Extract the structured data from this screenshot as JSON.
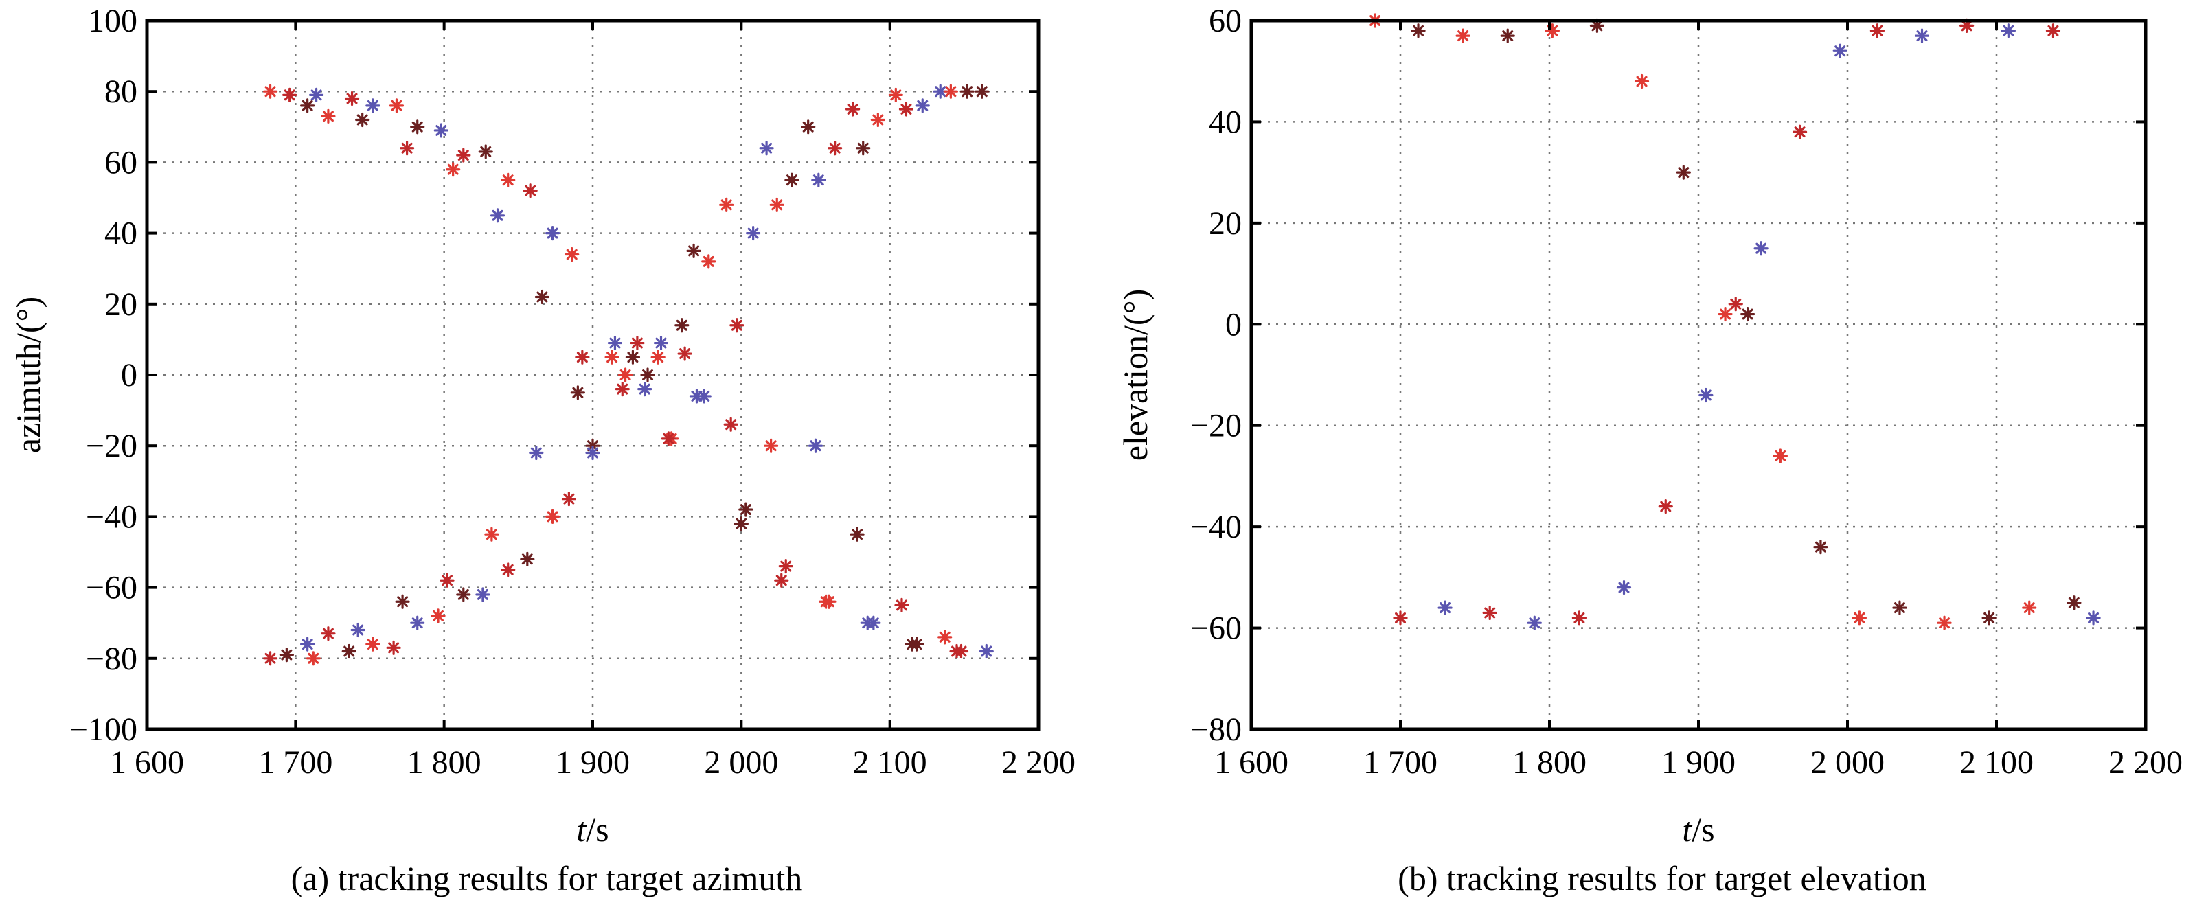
{
  "chart_data": [
    {
      "id": "azimuth",
      "type": "scatter",
      "caption": "(a) tracking results for target azimuth",
      "xlabel_italic": "t",
      "xlabel_rest": "/s",
      "ylabel": "azimuth/(°)",
      "xlim": [
        1600,
        2200
      ],
      "ylim": [
        -100,
        100
      ],
      "x_ticks": [
        1600,
        1700,
        1800,
        1900,
        2000,
        2100,
        2200
      ],
      "x_tick_labels": [
        "1 600",
        "1 700",
        "1 800",
        "1 900",
        "2 000",
        "2 100",
        "2 200"
      ],
      "y_ticks": [
        -100,
        -80,
        -60,
        -40,
        -20,
        0,
        20,
        40,
        60,
        80,
        100
      ],
      "y_tick_labels": [
        "−100",
        "−80",
        "−60",
        "−40",
        "−20",
        "0",
        "20",
        "40",
        "60",
        "80",
        "100"
      ],
      "grid": true,
      "marker": "asterisk",
      "colors": [
        "#e03a33",
        "#c0282a",
        "#6a2020",
        "#5a55b0"
      ],
      "series": [
        {
          "x": [
            1683,
            1696,
            1708,
            1714,
            1722,
            1738,
            1745,
            1752,
            1768,
            1775,
            1782,
            1798,
            1806,
            1813,
            1828,
            1836,
            1843,
            1858,
            1866,
            1873,
            1886,
            1893,
            1900,
            1915,
            1922,
            1930,
            1937,
            1946,
            1953,
            1962,
            1968,
            1975,
            1990,
            1997,
            2003,
            2017,
            2024,
            2030,
            2045,
            2052,
            2059,
            2075,
            2082,
            2089,
            2104,
            2111,
            2118,
            2134,
            2141,
            2148,
            2162
          ],
          "y": [
            80,
            79,
            76,
            79,
            73,
            78,
            72,
            76,
            76,
            64,
            70,
            69,
            58,
            62,
            63,
            45,
            55,
            52,
            22,
            40,
            34,
            5,
            -20,
            9,
            0,
            9,
            0,
            9,
            -18,
            6,
            35,
            -6,
            48,
            14,
            -38,
            64,
            48,
            -54,
            70,
            55,
            -64,
            75,
            64,
            -70,
            79,
            75,
            -76,
            80,
            80,
            -78,
            80
          ]
        },
        {
          "x": [
            1683,
            1694,
            1708,
            1712,
            1722,
            1736,
            1742,
            1752,
            1766,
            1772,
            1782,
            1796,
            1802,
            1813,
            1826,
            1832,
            1843,
            1856,
            1862,
            1873,
            1884,
            1890,
            1900,
            1913,
            1920,
            1927,
            1935,
            1944,
            1951,
            1960,
            1970,
            1978,
            1993,
            2000,
            2008,
            2020,
            2027,
            2034,
            2050,
            2057,
            2063,
            2078,
            2085,
            2092,
            2108,
            2115,
            2122,
            2137,
            2145,
            2152,
            2165
          ],
          "y": [
            -80,
            -79,
            -76,
            -80,
            -73,
            -78,
            -72,
            -76,
            -77,
            -64,
            -70,
            -68,
            -58,
            -62,
            -62,
            -45,
            -55,
            -52,
            -22,
            -40,
            -35,
            -5,
            -22,
            5,
            -4,
            5,
            -4,
            5,
            -18,
            14,
            -6,
            32,
            -14,
            -42,
            40,
            -20,
            -58,
            55,
            -20,
            -64,
            64,
            -45,
            -70,
            72,
            -65,
            -76,
            76,
            -74,
            -78,
            80,
            -78
          ]
        }
      ]
    },
    {
      "id": "elevation",
      "type": "scatter",
      "caption": "(b) tracking results for target elevation",
      "xlabel_italic": "t",
      "xlabel_rest": "/s",
      "ylabel": "elevation/(°)",
      "xlim": [
        1600,
        2200
      ],
      "ylim": [
        -80,
        60
      ],
      "x_ticks": [
        1600,
        1700,
        1800,
        1900,
        2000,
        2100,
        2200
      ],
      "x_tick_labels": [
        "1 600",
        "1 700",
        "1 800",
        "1 900",
        "2 000",
        "2 100",
        "2 200"
      ],
      "y_ticks": [
        -80,
        -60,
        -40,
        -20,
        0,
        20,
        40,
        60
      ],
      "y_tick_labels": [
        "−80",
        "−60",
        "−40",
        "−20",
        "0",
        "20",
        "40",
        "60"
      ],
      "grid": true,
      "marker": "asterisk",
      "colors": [
        "#e03a33",
        "#c0282a",
        "#6a2020",
        "#5a55b0"
      ],
      "series": [
        {
          "x": [
            1683,
            1700,
            1712,
            1730,
            1742,
            1760,
            1772,
            1790,
            1802,
            1820,
            1832,
            1850,
            1862,
            1878,
            1890,
            1905,
            1918,
            1925,
            1933,
            1942,
            1955,
            1968,
            1982,
            1995,
            2008,
            2020,
            2035,
            2050,
            2065,
            2080,
            2095,
            2108,
            2122,
            2138,
            2152,
            2165
          ],
          "y": [
            60,
            -58,
            58,
            -56,
            57,
            -57,
            57,
            -59,
            58,
            -58,
            59,
            -52,
            48,
            -36,
            30,
            -14,
            2,
            4,
            2,
            15,
            -26,
            38,
            -44,
            54,
            -58,
            58,
            -56,
            57,
            -59,
            59,
            -58,
            58,
            -56,
            58,
            -55,
            -58
          ]
        }
      ]
    }
  ]
}
